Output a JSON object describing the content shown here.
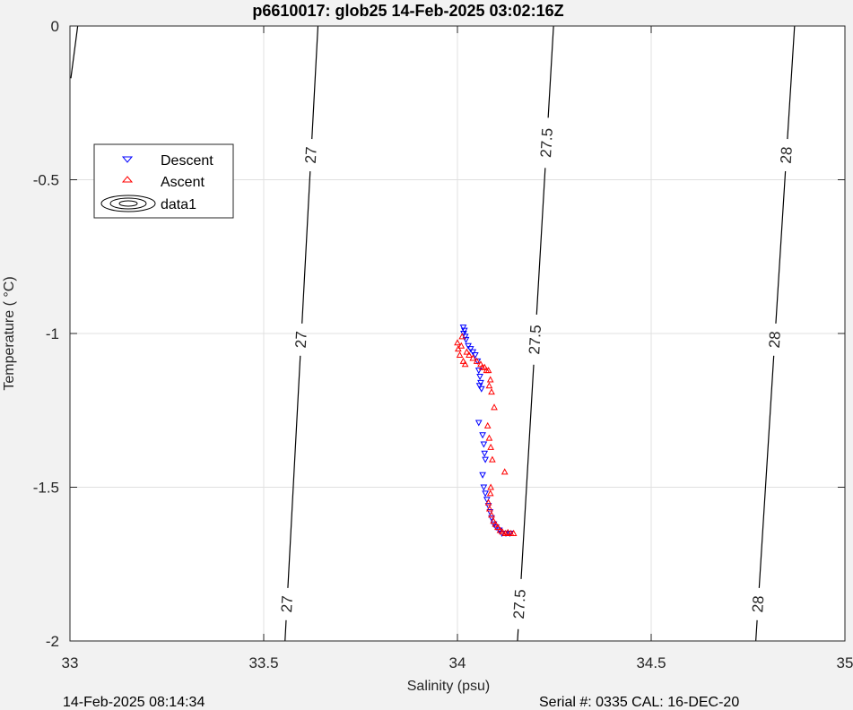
{
  "figure": {
    "title": "p6610017: glob25 14-Feb-2025 03:02:16Z",
    "footer_left": "14-Feb-2025 08:14:34",
    "footer_right": "Serial #: 0335  CAL: 16-DEC-20"
  },
  "chart_data": {
    "type": "scatter",
    "xlabel": "Salinity (psu)",
    "ylabel": "Temperature (   °C)",
    "xlim": [
      33,
      35
    ],
    "ylim": [
      -2,
      0
    ],
    "xticks": [
      "33",
      "33.5",
      "34",
      "34.5",
      "35"
    ],
    "yticks": [
      "0",
      "-0.5",
      "-1",
      "-1.5",
      "-2"
    ],
    "grid": true,
    "legend_position": "top-left",
    "legend": [
      "Descent",
      "Ascent",
      "data1"
    ],
    "colors": {
      "descent": "#0000ff",
      "ascent": "#ff0000",
      "contour": "#000000",
      "grid": "#e0e0e0"
    },
    "series": [
      {
        "name": "Descent",
        "marker": "triangle-down",
        "color": "#0000ff",
        "points": [
          [
            34.015,
            -0.98
          ],
          [
            34.018,
            -0.99
          ],
          [
            34.016,
            -1.0
          ],
          [
            34.02,
            -1.01
          ],
          [
            34.022,
            -1.02
          ],
          [
            34.028,
            -1.04
          ],
          [
            34.034,
            -1.05
          ],
          [
            34.04,
            -1.06
          ],
          [
            34.046,
            -1.07
          ],
          [
            34.052,
            -1.09
          ],
          [
            34.055,
            -1.12
          ],
          [
            34.058,
            -1.14
          ],
          [
            34.06,
            -1.16
          ],
          [
            34.062,
            -1.18
          ],
          [
            34.057,
            -1.17
          ],
          [
            34.055,
            -1.29
          ],
          [
            34.065,
            -1.33
          ],
          [
            34.068,
            -1.36
          ],
          [
            34.07,
            -1.39
          ],
          [
            34.072,
            -1.41
          ],
          [
            34.065,
            -1.46
          ],
          [
            34.068,
            -1.5
          ],
          [
            34.072,
            -1.52
          ],
          [
            34.076,
            -1.54
          ],
          [
            34.08,
            -1.56
          ],
          [
            34.084,
            -1.58
          ],
          [
            34.088,
            -1.6
          ],
          [
            34.094,
            -1.62
          ],
          [
            34.1,
            -1.63
          ],
          [
            34.108,
            -1.64
          ],
          [
            34.115,
            -1.65
          ],
          [
            34.125,
            -1.65
          ],
          [
            34.135,
            -1.65
          ]
        ]
      },
      {
        "name": "Ascent",
        "marker": "triangle-up",
        "color": "#ff0000",
        "points": [
          [
            34.0,
            -1.03
          ],
          [
            34.002,
            -1.05
          ],
          [
            34.006,
            -1.07
          ],
          [
            34.01,
            -1.04
          ],
          [
            34.012,
            -1.01
          ],
          [
            34.015,
            -1.09
          ],
          [
            34.02,
            -1.1
          ],
          [
            34.024,
            -1.06
          ],
          [
            34.03,
            -1.07
          ],
          [
            34.04,
            -1.08
          ],
          [
            34.05,
            -1.09
          ],
          [
            34.06,
            -1.1
          ],
          [
            34.064,
            -1.11
          ],
          [
            34.07,
            -1.11
          ],
          [
            34.075,
            -1.12
          ],
          [
            34.08,
            -1.12
          ],
          [
            34.085,
            -1.15
          ],
          [
            34.082,
            -1.17
          ],
          [
            34.088,
            -1.19
          ],
          [
            34.095,
            -1.24
          ],
          [
            34.078,
            -1.3
          ],
          [
            34.082,
            -1.34
          ],
          [
            34.086,
            -1.37
          ],
          [
            34.09,
            -1.41
          ],
          [
            34.122,
            -1.45
          ],
          [
            34.086,
            -1.5
          ],
          [
            34.085,
            -1.52
          ],
          [
            34.08,
            -1.55
          ],
          [
            34.083,
            -1.57
          ],
          [
            34.088,
            -1.59
          ],
          [
            34.093,
            -1.61
          ],
          [
            34.098,
            -1.62
          ],
          [
            34.104,
            -1.63
          ],
          [
            34.11,
            -1.64
          ],
          [
            34.116,
            -1.645
          ],
          [
            34.124,
            -1.65
          ],
          [
            34.13,
            -1.647
          ],
          [
            34.138,
            -1.65
          ],
          [
            34.145,
            -1.65
          ]
        ]
      }
    ],
    "contours": [
      {
        "label": "27",
        "points": [
          [
            33.64,
            0
          ],
          [
            33.555,
            -2
          ]
        ],
        "label_y": [
          -0.42,
          -1.02,
          -1.88
        ]
      },
      {
        "label": "27.5",
        "points": [
          [
            34.248,
            0
          ],
          [
            34.155,
            -2
          ]
        ],
        "label_y": [
          -0.38,
          -1.02,
          -1.88
        ]
      },
      {
        "label": "28",
        "points": [
          [
            34.87,
            0
          ],
          [
            34.77,
            -2
          ]
        ],
        "label_y": [
          -0.42,
          -1.02,
          -1.88
        ]
      }
    ],
    "edge_contour": {
      "points": [
        [
          33.02,
          0
        ],
        [
          33.0,
          -0.17
        ]
      ]
    }
  }
}
